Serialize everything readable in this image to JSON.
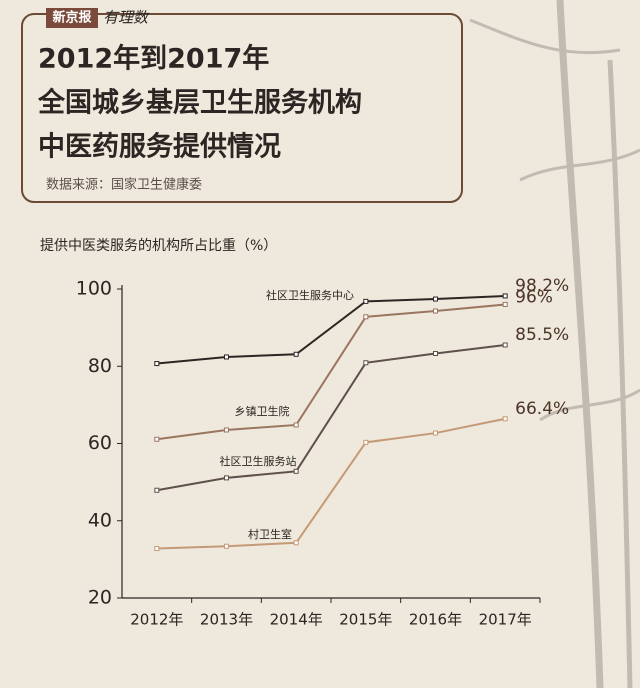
{
  "header": {
    "brand": "新京报",
    "column": "有理数",
    "title": [
      "2012年到2017年",
      "全国城乡基层卫生服务机构",
      "中医药服务提供情况"
    ],
    "source": "数据来源：国家卫生健康委"
  },
  "chart_data": {
    "type": "line",
    "y_label": "提供中医类服务的机构所占比重（%）",
    "categories": [
      "2012年",
      "2013年",
      "2014年",
      "2015年",
      "2016年",
      "2017年"
    ],
    "ylim": [
      20,
      100
    ],
    "yticks": [
      20,
      40,
      60,
      80,
      100
    ],
    "grid": false,
    "series": [
      {
        "name": "社区卫生服务中心",
        "color": "#2b2623",
        "values": [
          80.7,
          82.4,
          83.1,
          96.8,
          97.4,
          98.2
        ],
        "value_labels": [
          null,
          null,
          null,
          null,
          null,
          "98.2%"
        ]
      },
      {
        "name": "乡镇卫生院",
        "color": "#9a7560",
        "values": [
          61.1,
          63.5,
          64.8,
          92.8,
          94.3,
          96
        ],
        "value_labels": [
          null,
          null,
          null,
          null,
          null,
          "96%"
        ]
      },
      {
        "name": "社区卫生服务站",
        "color": "#5e514a",
        "values": [
          47.9,
          51.1,
          52.8,
          80.9,
          83.3,
          85.5
        ],
        "value_labels": [
          null,
          null,
          null,
          null,
          null,
          "85.5%"
        ]
      },
      {
        "name": "村卫生室",
        "color": "#c49a76",
        "values": [
          32.8,
          33.4,
          34.3,
          60.3,
          62.7,
          66.4
        ],
        "value_labels": [
          null,
          null,
          null,
          null,
          null,
          "66.4%"
        ]
      }
    ]
  }
}
